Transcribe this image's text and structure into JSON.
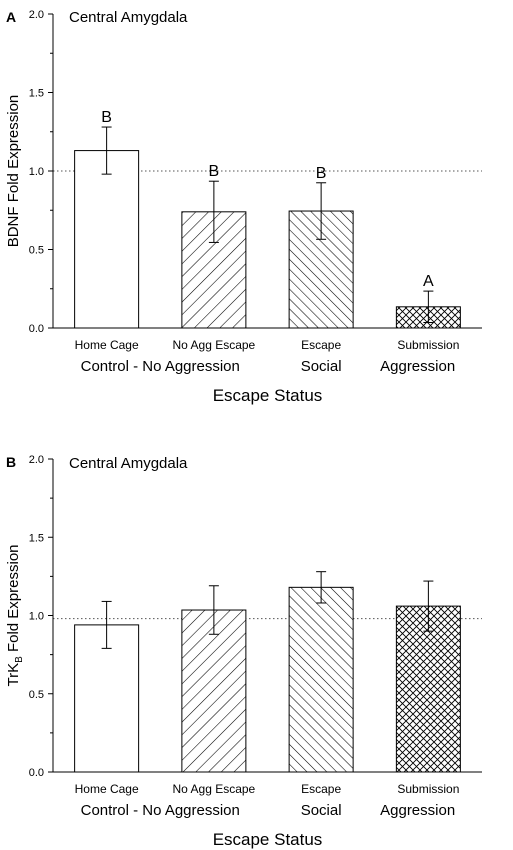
{
  "chart_data": [
    {
      "panel_label": "A",
      "type": "bar",
      "title": "Central Amygdala",
      "ylabel": "BDNF Fold Expression",
      "ylabel_sub": "",
      "ylabel_tail": "",
      "xlabel": "Escape Status",
      "categories": [
        "Home Cage",
        "No Agg Escape",
        "Escape",
        "Submission"
      ],
      "values": [
        1.13,
        0.74,
        0.745,
        0.135
      ],
      "errors": [
        0.15,
        0.195,
        0.18,
        0.1
      ],
      "significance": [
        "B",
        "B",
        "B",
        "A"
      ],
      "patterns": [
        "none",
        "diag-wide",
        "diag-back",
        "crosshatch"
      ],
      "ylim": [
        0,
        2.0
      ],
      "yticks": [
        "0.0",
        "0.5",
        "1.0",
        "1.5",
        "2.0"
      ],
      "reference_line": 1.0,
      "groups": [
        {
          "label": "Control - No Aggression",
          "anchor_category": 0.5
        },
        {
          "label": "Social",
          "anchor_category": 2.0
        },
        {
          "label": "Aggression",
          "anchor_category": 2.9
        }
      ]
    },
    {
      "panel_label": "B",
      "type": "bar",
      "title": "Central Amygdala",
      "ylabel": "TrK",
      "ylabel_sub": "B",
      "ylabel_tail": " Fold Expression",
      "xlabel": "Escape Status",
      "categories": [
        "Home Cage",
        "No Agg Escape",
        "Escape",
        "Submission"
      ],
      "values": [
        0.94,
        1.035,
        1.18,
        1.06
      ],
      "errors": [
        0.15,
        0.155,
        0.1,
        0.16
      ],
      "significance": [
        "",
        "",
        "",
        ""
      ],
      "patterns": [
        "none",
        "diag-wide",
        "diag-back",
        "crosshatch"
      ],
      "ylim": [
        0,
        2.0
      ],
      "yticks": [
        "0.0",
        "0.5",
        "1.0",
        "1.5",
        "2.0"
      ],
      "reference_line": 0.98,
      "groups": [
        {
          "label": "Control - No Aggression",
          "anchor_category": 0.5
        },
        {
          "label": "Social",
          "anchor_category": 2.0
        },
        {
          "label": "Aggression",
          "anchor_category": 2.9
        }
      ]
    }
  ]
}
